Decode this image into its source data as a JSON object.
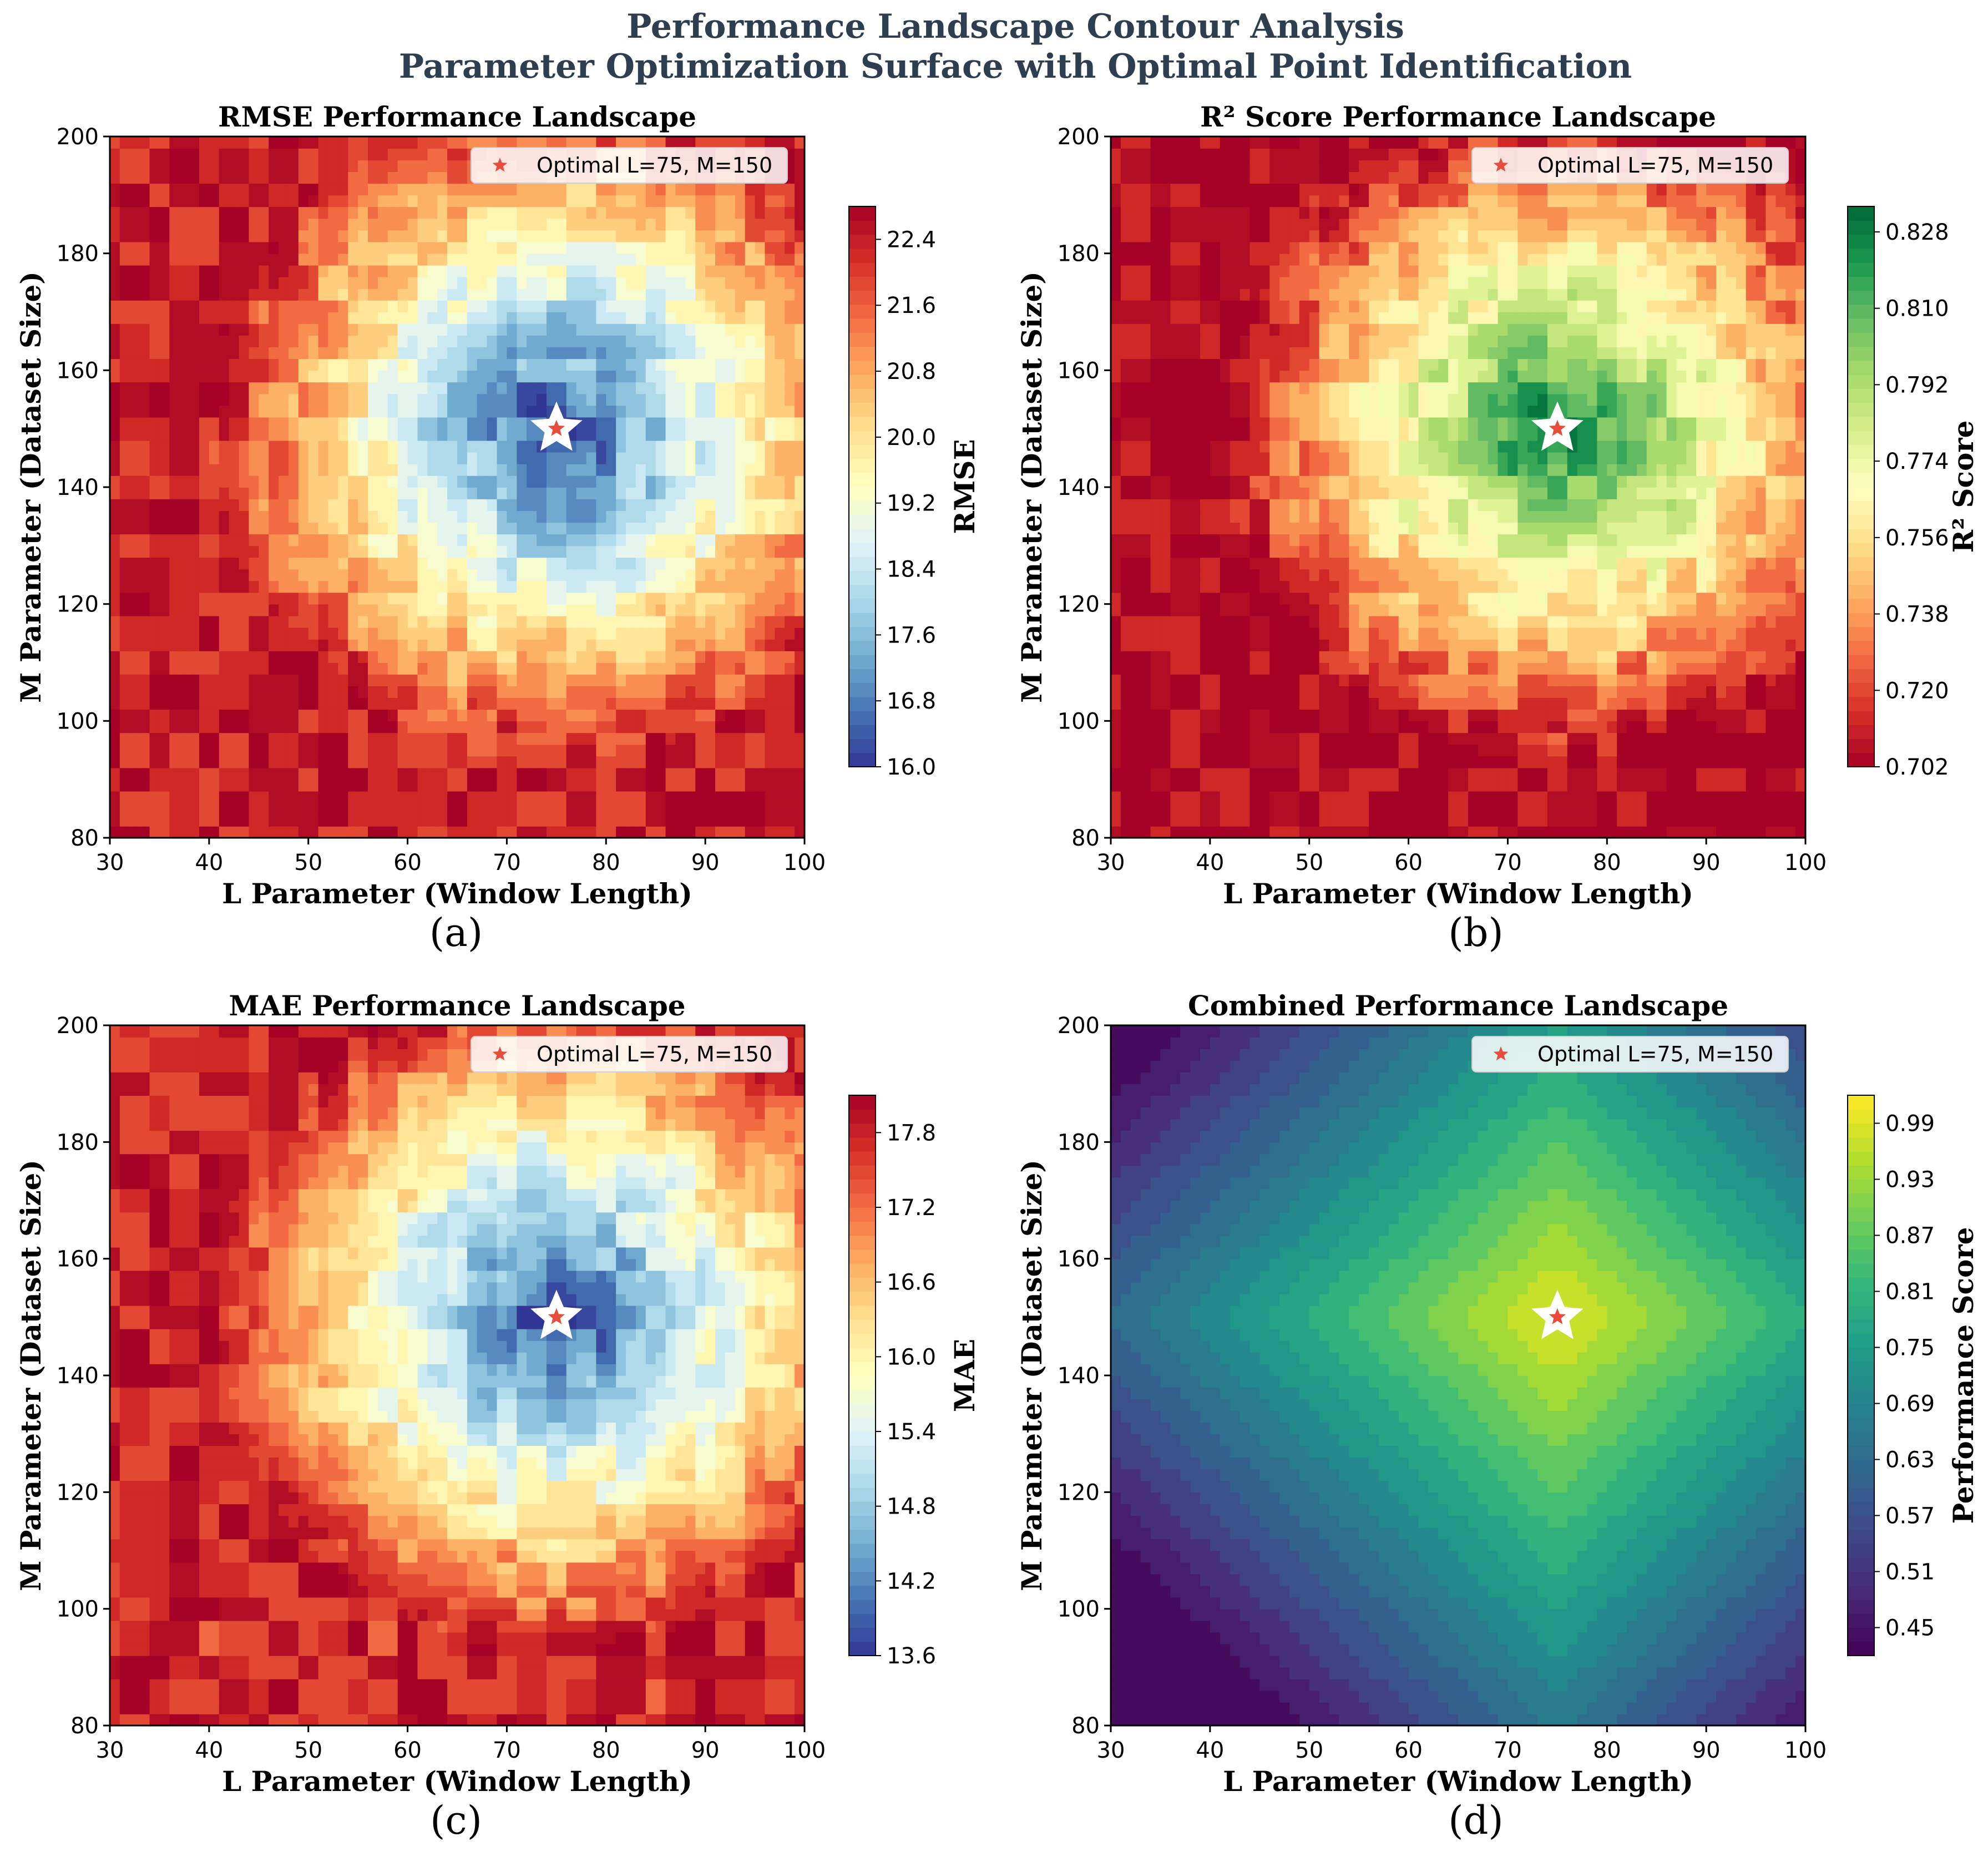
{
  "figure": {
    "title_line1": "Performance Landscape Contour Analysis",
    "title_line2": "Parameter Optimization Surface with Optimal Point Identification"
  },
  "chart_data": [
    {
      "type": "contour",
      "panel": "(a)",
      "title": "RMSE Performance Landscape",
      "xlabel": "L Parameter (Window Length)",
      "ylabel": "M Parameter (Dataset Size)",
      "xlim": [
        30,
        100
      ],
      "ylim": [
        80,
        200
      ],
      "xticks": [
        "30",
        "40",
        "50",
        "60",
        "70",
        "80",
        "90",
        "100"
      ],
      "yticks": [
        "80",
        "100",
        "120",
        "140",
        "160",
        "180",
        "200"
      ],
      "colorbar_label": "RMSE",
      "colorbar_ticks": [
        "16.0",
        "16.8",
        "17.6",
        "18.4",
        "19.2",
        "20.0",
        "20.8",
        "21.6",
        "22.4"
      ],
      "colorbar_range": [
        16.0,
        22.8
      ],
      "colormap": "RdYlBu_r",
      "optimal": {
        "L": 75,
        "M": 150,
        "label": "Optimal L=75, M=150"
      },
      "field": {
        "kind": "valley",
        "center_value": 16.0,
        "edge_value": 22.4
      }
    },
    {
      "type": "contour",
      "panel": "(b)",
      "title": "R² Score Performance Landscape",
      "xlabel": "L Parameter (Window Length)",
      "ylabel": "M Parameter (Dataset Size)",
      "xlim": [
        30,
        100
      ],
      "ylim": [
        80,
        200
      ],
      "xticks": [
        "30",
        "40",
        "50",
        "60",
        "70",
        "80",
        "90",
        "100"
      ],
      "yticks": [
        "80",
        "100",
        "120",
        "140",
        "160",
        "180",
        "200"
      ],
      "colorbar_label": "R² Score",
      "colorbar_ticks": [
        "0.702",
        "0.720",
        "0.738",
        "0.756",
        "0.774",
        "0.792",
        "0.810",
        "0.828"
      ],
      "colorbar_range": [
        0.702,
        0.834
      ],
      "colormap": "RdYlGn",
      "optimal": {
        "L": 75,
        "M": 150,
        "label": "Optimal L=75, M=150"
      },
      "field": {
        "kind": "peak",
        "center_value": 0.828,
        "edge_value": 0.702
      }
    },
    {
      "type": "contour",
      "panel": "(c)",
      "title": "MAE Performance Landscape",
      "xlabel": "L Parameter (Window Length)",
      "ylabel": "M Parameter (Dataset Size)",
      "xlim": [
        30,
        100
      ],
      "ylim": [
        80,
        200
      ],
      "xticks": [
        "30",
        "40",
        "50",
        "60",
        "70",
        "80",
        "90",
        "100"
      ],
      "yticks": [
        "80",
        "100",
        "120",
        "140",
        "160",
        "180",
        "200"
      ],
      "colorbar_label": "MAE",
      "colorbar_ticks": [
        "13.6",
        "14.2",
        "14.8",
        "15.4",
        "16.0",
        "16.6",
        "17.2",
        "17.8"
      ],
      "colorbar_range": [
        13.6,
        18.1
      ],
      "colormap": "RdYlBu_r",
      "optimal": {
        "L": 75,
        "M": 150,
        "label": "Optimal L=75, M=150"
      },
      "field": {
        "kind": "valley",
        "center_value": 13.6,
        "edge_value": 17.8
      }
    },
    {
      "type": "contour",
      "panel": "(d)",
      "title": "Combined Performance Landscape",
      "xlabel": "L Parameter (Window Length)",
      "ylabel": "M Parameter (Dataset Size)",
      "xlim": [
        30,
        100
      ],
      "ylim": [
        80,
        200
      ],
      "xticks": [
        "30",
        "40",
        "50",
        "60",
        "70",
        "80",
        "90",
        "100"
      ],
      "yticks": [
        "80",
        "100",
        "120",
        "140",
        "160",
        "180",
        "200"
      ],
      "colorbar_label": "Performance Score",
      "colorbar_ticks": [
        "0.45",
        "0.51",
        "0.57",
        "0.63",
        "0.69",
        "0.75",
        "0.81",
        "0.87",
        "0.93",
        "0.99"
      ],
      "colorbar_range": [
        0.42,
        1.02
      ],
      "colormap": "viridis",
      "optimal": {
        "L": 75,
        "M": 150,
        "label": "Optimal L=75, M=150"
      },
      "field": {
        "kind": "diamond",
        "center_value": 1.0,
        "edge_value": 0.45
      }
    }
  ],
  "colors": {
    "title": "#2c3e50",
    "marker": "#e74c3c"
  }
}
